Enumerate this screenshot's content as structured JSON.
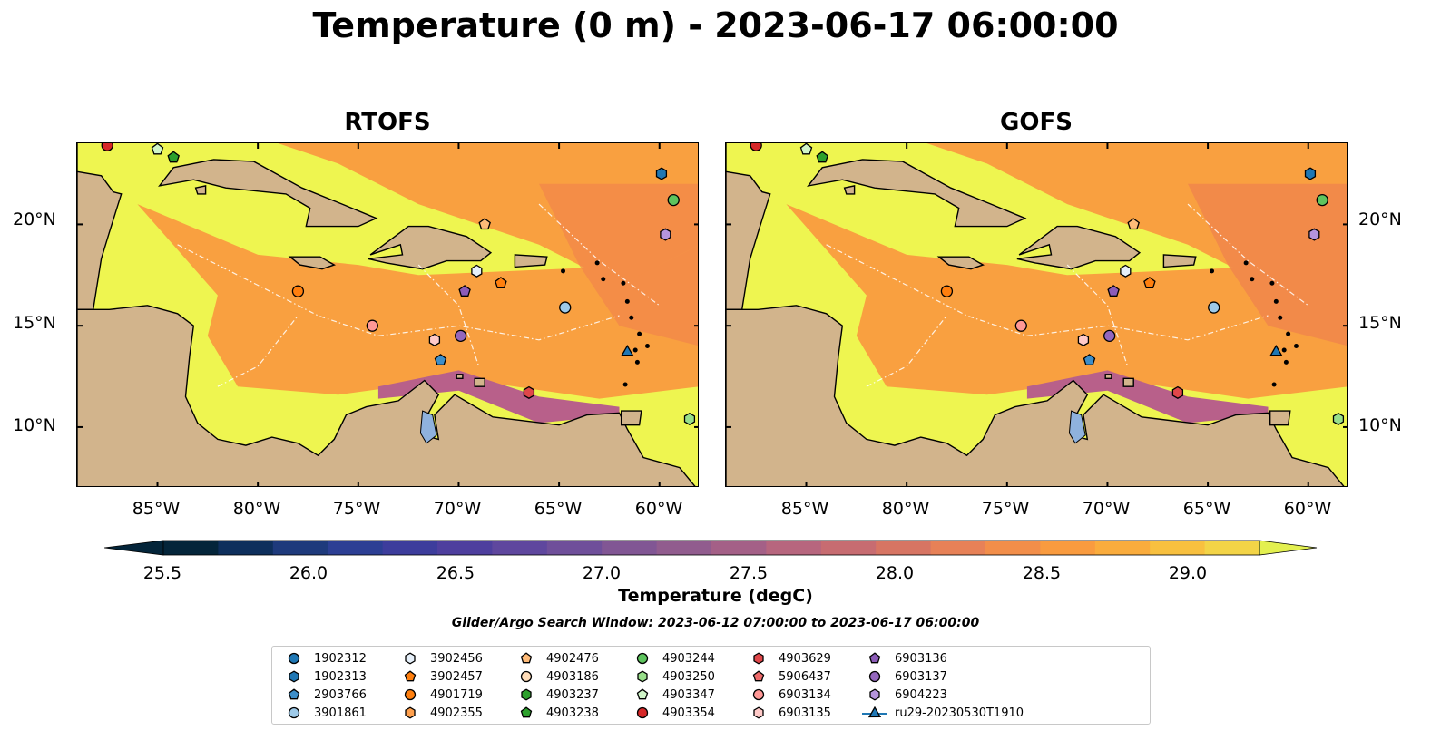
{
  "title": "Temperature (0 m) - 2023-06-17 06:00:00",
  "panels": [
    {
      "title": "RTOFS"
    },
    {
      "title": "GOFS"
    }
  ],
  "map": {
    "lon_range": [
      -89,
      -58
    ],
    "lat_range": [
      7,
      24
    ],
    "lat_labels": [
      "20°N",
      "15°N",
      "10°N"
    ],
    "lon_labels": [
      "85°W",
      "80°W",
      "75°W",
      "70°W",
      "65°W",
      "60°W"
    ],
    "land_color": "#d2b48c",
    "sea_fill_colors": [
      "#eef550",
      "#f9a040",
      "#f1874a",
      "#b8608a"
    ]
  },
  "colorbar": {
    "label": "Temperature (degC)",
    "ticks": [
      "25.5",
      "26.0",
      "26.5",
      "27.0",
      "27.5",
      "28.0",
      "28.5",
      "29.0"
    ],
    "range": [
      25.5,
      29.25
    ],
    "colors": [
      "#04253a",
      "#0e2f5c",
      "#1e3a7c",
      "#2c3f94",
      "#3d3d9c",
      "#4e3f9e",
      "#5f479e",
      "#6f4f9a",
      "#815694",
      "#915c8e",
      "#a46087",
      "#b7667e",
      "#c76c71",
      "#d77563",
      "#e78157",
      "#f28e4a",
      "#f99b3f",
      "#faac3d",
      "#f8c03f",
      "#f3d447",
      "#e3f050"
    ]
  },
  "window_text": "Glider/Argo Search Window: 2023-06-12 07:00:00 to 2023-06-17 06:00:00",
  "legend": [
    {
      "label": "1902312",
      "marker": "circle",
      "color": "#1f77b4"
    },
    {
      "label": "1902313",
      "marker": "hexagon",
      "color": "#1f77b4"
    },
    {
      "label": "2903766",
      "marker": "pentagon",
      "color": "#3d8ec9"
    },
    {
      "label": "3901861",
      "marker": "circle",
      "color": "#9ecae9"
    },
    {
      "label": "3902456",
      "marker": "hexagon",
      "color": "#e6f0fa"
    },
    {
      "label": "3902457",
      "marker": "pentagon",
      "color": "#ff7f0e"
    },
    {
      "label": "4901719",
      "marker": "circle",
      "color": "#ff7f0e"
    },
    {
      "label": "4902355",
      "marker": "hexagon",
      "color": "#ffa04d"
    },
    {
      "label": "4902476",
      "marker": "pentagon",
      "color": "#ffbb78"
    },
    {
      "label": "4903186",
      "marker": "circle",
      "color": "#ffdcb8"
    },
    {
      "label": "4903237",
      "marker": "hexagon",
      "color": "#2ca02c"
    },
    {
      "label": "4903238",
      "marker": "pentagon",
      "color": "#2ca02c"
    },
    {
      "label": "4903244",
      "marker": "circle",
      "color": "#5ec45e"
    },
    {
      "label": "4903250",
      "marker": "hexagon",
      "color": "#98df8a"
    },
    {
      "label": "4903347",
      "marker": "pentagon",
      "color": "#d0f5c8"
    },
    {
      "label": "4903354",
      "marker": "circle",
      "color": "#d62728"
    },
    {
      "label": "4903629",
      "marker": "hexagon",
      "color": "#e0474a"
    },
    {
      "label": "5906437",
      "marker": "pentagon",
      "color": "#ee6a6a"
    },
    {
      "label": "6903134",
      "marker": "circle",
      "color": "#ff9896"
    },
    {
      "label": "6903135",
      "marker": "hexagon",
      "color": "#ffcac8"
    },
    {
      "label": "6903136",
      "marker": "pentagon",
      "color": "#8c5cb8"
    },
    {
      "label": "6903137",
      "marker": "circle",
      "color": "#9467bd"
    },
    {
      "label": "6904223",
      "marker": "hexagon",
      "color": "#b594dc"
    },
    {
      "label": "ru29-20230530T1910",
      "marker": "triangle-line",
      "color": "#1f77b4"
    }
  ],
  "map_markers": [
    {
      "id": "4903354",
      "lon": -87.5,
      "lat": 23.9
    },
    {
      "id": "4903347",
      "lon": -85.0,
      "lat": 23.7
    },
    {
      "id": "4903238",
      "lon": -84.2,
      "lat": 23.3
    },
    {
      "id": "1902313",
      "lon": -59.9,
      "lat": 22.5
    },
    {
      "id": "4903244",
      "lon": -59.3,
      "lat": 21.2
    },
    {
      "id": "4902476",
      "lon": -68.7,
      "lat": 20.0
    },
    {
      "id": "6904223",
      "lon": -59.7,
      "lat": 19.5
    },
    {
      "id": "3902456",
      "lon": -69.1,
      "lat": 17.7
    },
    {
      "id": "3902457",
      "lon": -67.9,
      "lat": 17.1
    },
    {
      "id": "4901719",
      "lon": -78.0,
      "lat": 16.7
    },
    {
      "id": "6903136",
      "lon": -69.7,
      "lat": 16.7
    },
    {
      "id": "3901861",
      "lon": -64.7,
      "lat": 15.9
    },
    {
      "id": "6903134",
      "lon": -74.3,
      "lat": 15.0
    },
    {
      "id": "6903135",
      "lon": -71.2,
      "lat": 14.3
    },
    {
      "id": "6903137",
      "lon": -69.9,
      "lat": 14.5
    },
    {
      "id": "2903766",
      "lon": -70.9,
      "lat": 13.3
    },
    {
      "id": "4903629",
      "lon": -66.5,
      "lat": 11.7
    },
    {
      "id": "ru29-20230530T1910",
      "lon": -61.6,
      "lat": 13.7
    },
    {
      "id": "4903250",
      "lon": -58.5,
      "lat": 10.4
    }
  ]
}
